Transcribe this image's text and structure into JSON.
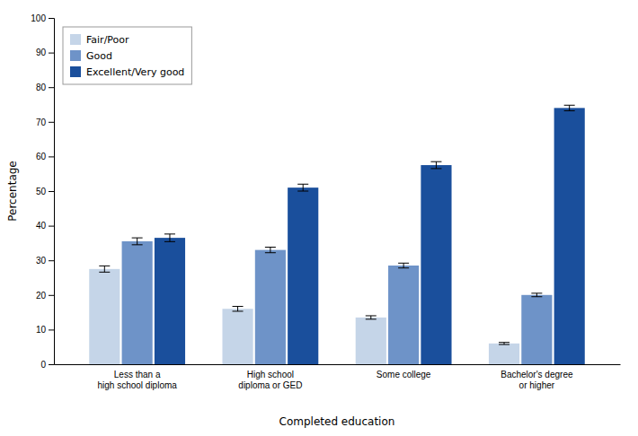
{
  "chart_data": {
    "type": "bar",
    "categories": [
      "Less than a\nhigh school diploma",
      "High school\ndiploma or GED",
      "Some college",
      "Bachelor's degree\nor higher"
    ],
    "series": [
      {
        "name": "Fair/Poor",
        "color": "#c5d5e8",
        "values": [
          27.5,
          16.0,
          13.5,
          6.0
        ],
        "errors": [
          0.9,
          0.7,
          0.5,
          0.3
        ]
      },
      {
        "name": "Good",
        "color": "#6e93c8",
        "values": [
          35.5,
          33.0,
          28.5,
          20.0
        ],
        "errors": [
          1.0,
          0.8,
          0.7,
          0.5
        ]
      },
      {
        "name": "Excellent/Very good",
        "color": "#1a4f9c",
        "values": [
          36.5,
          51.0,
          57.5,
          74.0
        ],
        "errors": [
          1.1,
          1.0,
          1.0,
          0.8
        ]
      }
    ],
    "xlabel": "Completed education",
    "ylabel": "Percentage",
    "ylim": [
      0,
      100
    ],
    "yticks": [
      0,
      10,
      20,
      30,
      40,
      50,
      60,
      70,
      80,
      90,
      100
    ],
    "grid": false,
    "legend": "upper left"
  }
}
